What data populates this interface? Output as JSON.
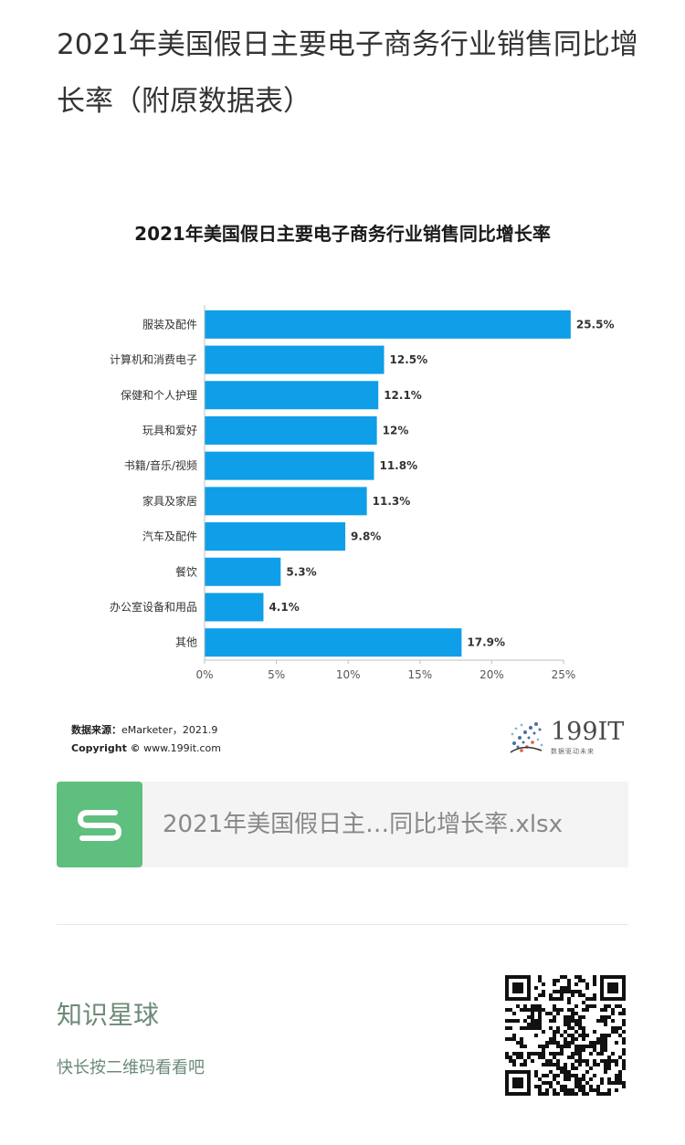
{
  "article": {
    "title": "2021年美国假日主要电子商务行业销售同比增长率（附原数据表）"
  },
  "chart_data": {
    "type": "bar",
    "orientation": "horizontal",
    "title": "2021年美国假日主要电子商务行业销售同比增长率",
    "categories": [
      "服装及配件",
      "计算机和消费电子",
      "保健和个人护理",
      "玩具和爱好",
      "书籍/音乐/视频",
      "家具及家居",
      "汽车及配件",
      "餐饮",
      "办公室设备和用品",
      "其他"
    ],
    "values": [
      25.5,
      12.5,
      12.1,
      12,
      11.8,
      11.3,
      9.8,
      5.3,
      4.1,
      17.9
    ],
    "value_labels": [
      "25.5%",
      "12.5%",
      "12.1%",
      "12%",
      "11.8%",
      "11.3%",
      "9.8%",
      "5.3%",
      "4.1%",
      "17.9%"
    ],
    "xlim": [
      0,
      25
    ],
    "xticks": [
      "0%",
      "5%",
      "10%",
      "15%",
      "20%",
      "25%"
    ],
    "xtick_values": [
      0,
      5,
      10,
      15,
      20,
      25
    ],
    "bar_color": "#0f9ee8",
    "grid": false
  },
  "source": {
    "label": "数据来源：",
    "text": "eMarketer，2021.9",
    "copyright_label": "Copyright ©",
    "copyright_site": "www.199it.com"
  },
  "logo": {
    "name": "199IT",
    "tagline": "数据驱动未来"
  },
  "file": {
    "name": "2021年美国假日主…同比增长率.xlsx",
    "icon": "spreadsheet-s-icon",
    "icon_color": "#5fbf7f"
  },
  "knowledge": {
    "title": "知识星球",
    "subtitle": "快长按二维码看看吧",
    "qr_icon": "qr-code-icon"
  }
}
